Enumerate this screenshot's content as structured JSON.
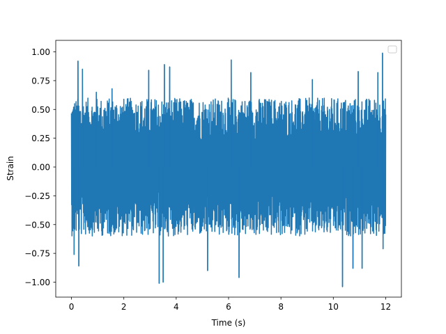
{
  "chart_data": {
    "type": "line",
    "title": "",
    "xlabel": "Time (s)",
    "ylabel": "Strain",
    "xlim": [
      -0.6,
      12.6
    ],
    "ylim": [
      -1.13,
      1.1
    ],
    "xticks": [
      0,
      2,
      4,
      6,
      8,
      10,
      12
    ],
    "xtick_labels": [
      "0",
      "2",
      "4",
      "6",
      "8",
      "10",
      "12"
    ],
    "yticks": [
      1.0,
      0.75,
      0.5,
      0.25,
      0.0,
      -0.25,
      -0.5,
      -0.75,
      -1.0
    ],
    "ytick_labels": [
      "1.00",
      "0.75",
      "0.50",
      "0.25",
      "0.00",
      "−0.25",
      "−0.50",
      "−0.75",
      "−1.00"
    ],
    "grid": false,
    "legend": {
      "placement": "top-right",
      "entries": []
    },
    "series": [
      {
        "color": "#1f77b4",
        "x_range": [
          0,
          12
        ],
        "band": [
          -0.6,
          0.6
        ],
        "peaks": [
          {
            "x": 0.25,
            "y": 0.92
          },
          {
            "x": 0.42,
            "y": 0.85
          },
          {
            "x": 0.95,
            "y": 0.65
          },
          {
            "x": 1.55,
            "y": 0.68
          },
          {
            "x": 2.95,
            "y": 0.84
          },
          {
            "x": 3.55,
            "y": 0.89
          },
          {
            "x": 3.75,
            "y": 0.87
          },
          {
            "x": 6.1,
            "y": 0.93
          },
          {
            "x": 6.85,
            "y": 0.82
          },
          {
            "x": 9.2,
            "y": 0.76
          },
          {
            "x": 10.95,
            "y": 0.83
          },
          {
            "x": 11.7,
            "y": 0.82
          },
          {
            "x": 11.88,
            "y": 0.99
          },
          {
            "x": 0.1,
            "y": -0.76
          },
          {
            "x": 0.28,
            "y": -0.86
          },
          {
            "x": 3.35,
            "y": -1.01
          },
          {
            "x": 3.5,
            "y": -1.0
          },
          {
            "x": 5.2,
            "y": -0.9
          },
          {
            "x": 6.4,
            "y": -0.96
          },
          {
            "x": 10.35,
            "y": -1.04
          },
          {
            "x": 10.75,
            "y": -0.88
          },
          {
            "x": 11.1,
            "y": -0.88
          },
          {
            "x": 11.9,
            "y": -0.71
          }
        ]
      }
    ]
  }
}
